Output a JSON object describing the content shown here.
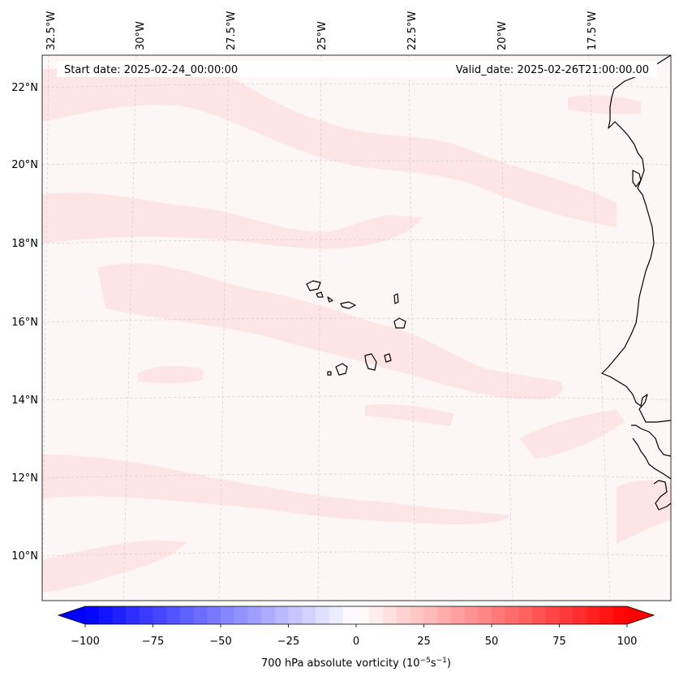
{
  "map": {
    "start_label": "Start date: 2025-02-24_00:00:00",
    "valid_label": "Valid_date: 2025-02-26T21:00:00.00",
    "lon_labels": [
      "32.5°W",
      "30°W",
      "27.5°W",
      "25°W",
      "22.5°W",
      "20°W",
      "17.5°W"
    ],
    "lat_labels": [
      "22°N",
      "20°N",
      "18°N",
      "16°N",
      "14°N",
      "12°N",
      "10°N"
    ],
    "background_color": "#fdf6f6",
    "band_color": "#fde5e5",
    "coastline_color": "#000000"
  },
  "colorbar": {
    "label_main": "700 hPa absolute vorticity (10",
    "label_exp1": "−5",
    "label_mid": "s",
    "label_exp2": "−1",
    "label_end": ")",
    "ticks": [
      "−100",
      "−75",
      "−50",
      "−25",
      "0",
      "25",
      "50",
      "75",
      "100"
    ],
    "min": -100,
    "max": 100,
    "step": 5,
    "colors": {
      "low": "#0000ff",
      "mid": "#ffffff",
      "high": "#ff0000"
    }
  }
}
